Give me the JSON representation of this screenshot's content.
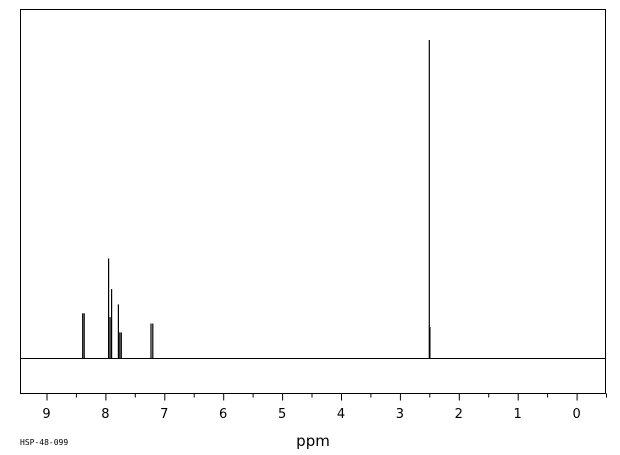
{
  "chart_data": {
    "type": "line",
    "title": "",
    "xlabel": "ppm",
    "ylabel": "",
    "xlim": [
      9.45,
      -0.5
    ],
    "ylim": [
      0,
      1.0
    ],
    "x_reversed": true,
    "grid": false,
    "legend": "none",
    "ticks": [
      "9",
      "8",
      "7",
      "6",
      "5",
      "4",
      "3",
      "2",
      "1",
      "0"
    ],
    "sample_id": "HSP-48-099",
    "peaks": [
      {
        "ppm": 8.385,
        "height": 0.142
      },
      {
        "ppm": 8.36,
        "height": 0.142
      },
      {
        "ppm": 7.945,
        "height": 0.314
      },
      {
        "ppm": 7.92,
        "height": 0.13
      },
      {
        "ppm": 7.895,
        "height": 0.218
      },
      {
        "ppm": 7.78,
        "height": 0.17
      },
      {
        "ppm": 7.755,
        "height": 0.082
      },
      {
        "ppm": 7.73,
        "height": 0.082
      },
      {
        "ppm": 7.225,
        "height": 0.11
      },
      {
        "ppm": 7.195,
        "height": 0.11
      },
      {
        "ppm": 2.5,
        "height": 1.0
      },
      {
        "ppm": 2.49,
        "height": 0.099
      }
    ],
    "color": "#000000"
  }
}
